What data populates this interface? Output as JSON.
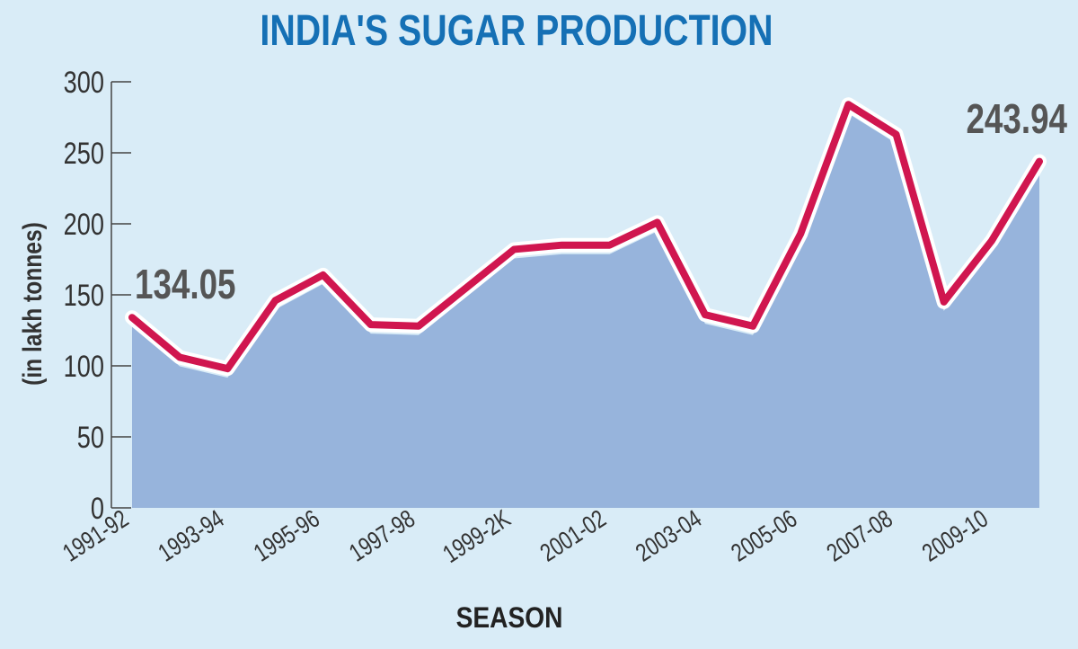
{
  "chart_data": {
    "type": "area",
    "title": "INDIA'S SUGAR PRODUCTION",
    "xlabel": "SEASON",
    "ylabel": "(in lakh tonnes)",
    "ylim": [
      0,
      300
    ],
    "yticks": [
      0,
      50,
      100,
      150,
      200,
      250,
      300
    ],
    "x_tick_labels": [
      "1991-92",
      "1993-94",
      "1995-96",
      "1997-98",
      "1999-2K",
      "2001-02",
      "2003-04",
      "2005-06",
      "2007-08",
      "2009-10"
    ],
    "categories": [
      "1991-92",
      "1992-93",
      "1993-94",
      "1994-95",
      "1995-96",
      "1996-97",
      "1997-98",
      "1998-99",
      "1999-2K",
      "2000-01",
      "2001-02",
      "2002-03",
      "2003-04",
      "2004-05",
      "2005-06",
      "2006-07",
      "2007-08",
      "2008-09",
      "2009-10",
      "2010-11"
    ],
    "values": [
      134.05,
      106,
      98,
      146,
      164,
      129,
      128,
      155,
      182,
      185,
      185,
      201,
      136,
      128,
      193,
      284,
      263,
      145,
      188,
      243.94
    ],
    "annotations": [
      {
        "category": "1991-92",
        "label": "134.05"
      },
      {
        "category": "2010-11",
        "label": "243.94"
      }
    ],
    "colors": {
      "background": "#d9ecf7",
      "area_fill": "#97b4dc",
      "line": "#d0164f",
      "line_halo": "#ffffff",
      "title": "#1570b5",
      "text": "#333333",
      "annotation": "#555555"
    },
    "grid": false
  }
}
